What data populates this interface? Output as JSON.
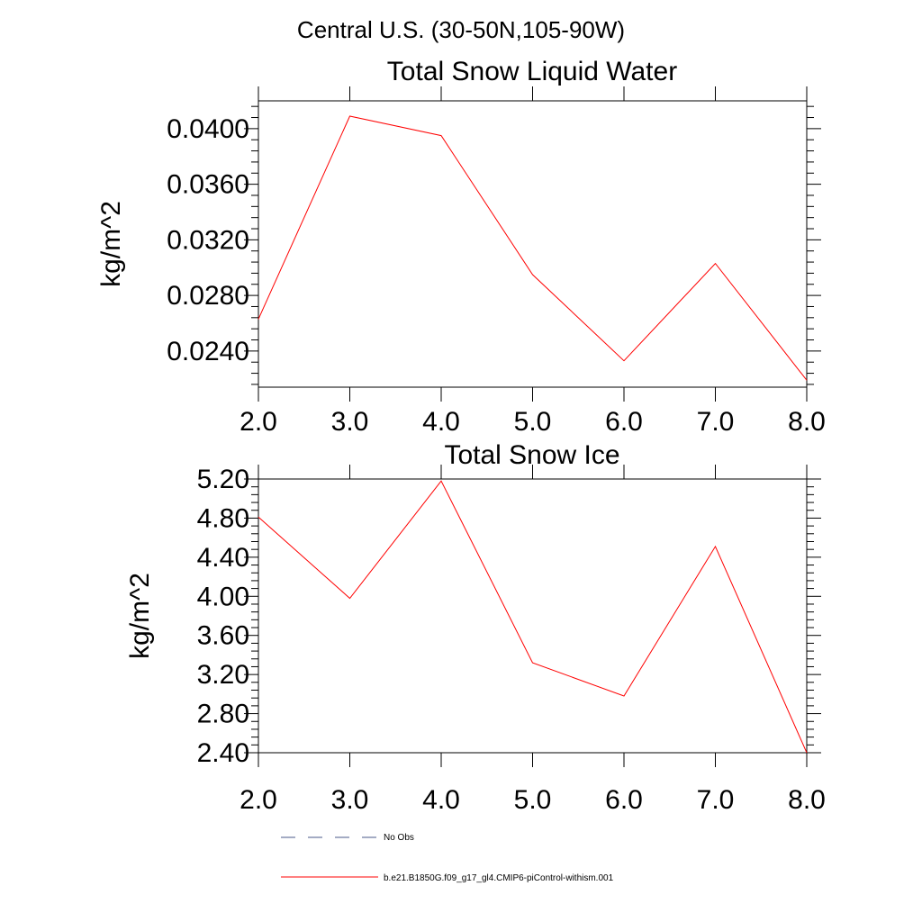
{
  "figure": {
    "region_title": "Central U.S. (30-50N,105-90W)"
  },
  "chart_data": [
    {
      "type": "line",
      "title": "Total Snow Liquid Water",
      "xlabel": "",
      "ylabel": "kg/m^2",
      "xlim": [
        2.0,
        8.0
      ],
      "ylim": [
        0.0214,
        0.042
      ],
      "xticks": [
        2.0,
        3.0,
        4.0,
        5.0,
        6.0,
        7.0,
        8.0
      ],
      "xtick_labels": [
        "2.0",
        "3.0",
        "4.0",
        "5.0",
        "6.0",
        "7.0",
        "8.0"
      ],
      "yticks": [
        0.024,
        0.028,
        0.032,
        0.036,
        0.04
      ],
      "ytick_labels": [
        "0.0240",
        "0.0280",
        "0.0320",
        "0.0360",
        "0.0400"
      ],
      "grid": false,
      "series": [
        {
          "color": "#ff0000",
          "x": [
            2.0,
            3.0,
            4.0,
            5.0,
            6.0,
            7.0,
            8.0
          ],
          "values": [
            0.0263,
            0.0409,
            0.0395,
            0.0295,
            0.0233,
            0.0303,
            0.0219
          ]
        }
      ]
    },
    {
      "type": "line",
      "title": "Total Snow Ice",
      "xlabel": "",
      "ylabel": "kg/m^2",
      "xlim": [
        2.0,
        8.0
      ],
      "ylim": [
        2.4,
        5.2
      ],
      "xticks": [
        2.0,
        3.0,
        4.0,
        5.0,
        6.0,
        7.0,
        8.0
      ],
      "xtick_labels": [
        "2.0",
        "3.0",
        "4.0",
        "5.0",
        "6.0",
        "7.0",
        "8.0"
      ],
      "yticks": [
        2.4,
        2.8,
        3.2,
        3.6,
        4.0,
        4.4,
        4.8,
        5.2
      ],
      "ytick_labels": [
        "2.40",
        "2.80",
        "3.20",
        "3.60",
        "4.00",
        "4.40",
        "4.80",
        "5.20"
      ],
      "grid": false,
      "series": [
        {
          "color": "#ff0000",
          "x": [
            2.0,
            3.0,
            4.0,
            5.0,
            6.0,
            7.0,
            8.0
          ],
          "values": [
            4.81,
            3.98,
            5.18,
            3.32,
            2.98,
            4.51,
            2.4
          ]
        }
      ]
    }
  ],
  "legend": {
    "placement": "bottom",
    "items": [
      {
        "label": "No Obs",
        "color": "#4a5a88",
        "style": "dashed"
      },
      {
        "label": "b.e21.B1850G.f09_g17_gl4.CMIP6-piControl-withism.001",
        "color": "#ff0000",
        "style": "solid"
      }
    ]
  }
}
